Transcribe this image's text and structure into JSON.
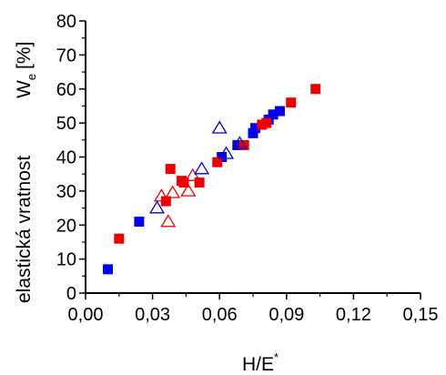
{
  "chart_data": {
    "type": "scatter",
    "title": "",
    "xlabel": "H/E",
    "xlabel_sup": "*",
    "ylabel": "elastická vratnost",
    "ylabel2_main": "W",
    "ylabel2_sub": "e",
    "ylabel2_unit": "[%]",
    "xlim": [
      0.0,
      0.15
    ],
    "ylim": [
      0,
      80
    ],
    "x_ticks": [
      "0,00",
      "0,03",
      "0,06",
      "0,09",
      "0,12",
      "0,15"
    ],
    "x_tick_values": [
      0.0,
      0.03,
      0.06,
      0.09,
      0.12,
      0.15
    ],
    "y_ticks": [
      "0",
      "10",
      "20",
      "30",
      "40",
      "50",
      "60",
      "70",
      "80"
    ],
    "y_tick_values": [
      0,
      10,
      20,
      30,
      40,
      50,
      60,
      70,
      80
    ],
    "grid": false,
    "legend": "none",
    "series": [
      {
        "marker": "filled-square",
        "color": "#0000ee",
        "points": [
          [
            0.01,
            7.0
          ],
          [
            0.024,
            21.0
          ],
          [
            0.061,
            40.0
          ],
          [
            0.068,
            43.5
          ],
          [
            0.075,
            47.0
          ],
          [
            0.076,
            48.5
          ],
          [
            0.082,
            51.0
          ],
          [
            0.084,
            52.5
          ],
          [
            0.087,
            53.5
          ]
        ]
      },
      {
        "marker": "filled-square",
        "color": "#ee0000",
        "points": [
          [
            0.015,
            16.0
          ],
          [
            0.036,
            27.0
          ],
          [
            0.038,
            36.5
          ],
          [
            0.043,
            33.0
          ],
          [
            0.044,
            32.5
          ],
          [
            0.051,
            32.5
          ],
          [
            0.059,
            38.5
          ],
          [
            0.071,
            43.5
          ],
          [
            0.079,
            49.5
          ],
          [
            0.081,
            50.0
          ],
          [
            0.092,
            56.0
          ],
          [
            0.103,
            60.0
          ]
        ]
      },
      {
        "marker": "open-triangle",
        "color": "#ee0000",
        "points": [
          [
            0.034,
            28.5
          ],
          [
            0.037,
            21.0
          ],
          [
            0.039,
            29.5
          ],
          [
            0.046,
            30.0
          ],
          [
            0.048,
            34.5
          ]
        ]
      },
      {
        "marker": "open-triangle",
        "color": "#0000cc",
        "points": [
          [
            0.032,
            25.0
          ],
          [
            0.052,
            36.5
          ],
          [
            0.06,
            48.5
          ],
          [
            0.063,
            41.0
          ],
          [
            0.069,
            44.0
          ]
        ]
      }
    ]
  }
}
